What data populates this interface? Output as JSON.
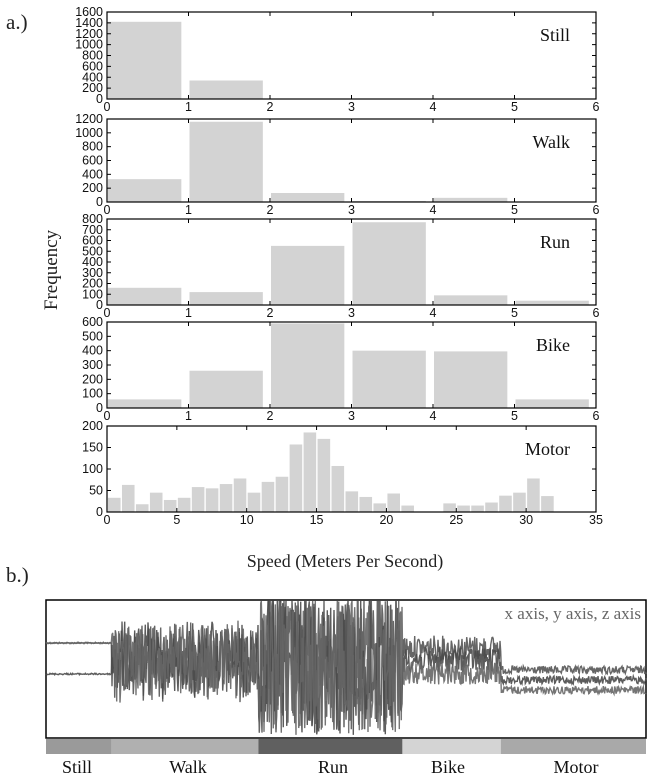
{
  "panel_labels": {
    "a": "a.)",
    "b": "b.)"
  },
  "shared_axis_labels": {
    "y": "Frequency",
    "x": "Speed (Meters Per Second)"
  },
  "chart_data": [
    {
      "type": "bar",
      "title": "Still",
      "xlim": [
        0,
        6
      ],
      "ylim": [
        0,
        1600
      ],
      "xticks": [
        0,
        1,
        2,
        3,
        4,
        5,
        6
      ],
      "yticks": [
        0,
        200,
        400,
        600,
        800,
        1000,
        1200,
        1400,
        1600
      ],
      "bin_edges": [
        0,
        1,
        2,
        3,
        4,
        5,
        6
      ],
      "values": [
        1420,
        340,
        0,
        0,
        0,
        0
      ]
    },
    {
      "type": "bar",
      "title": "Walk",
      "xlim": [
        0,
        6
      ],
      "ylim": [
        0,
        1200
      ],
      "xticks": [
        0,
        1,
        2,
        3,
        4,
        5,
        6
      ],
      "yticks": [
        0,
        200,
        400,
        600,
        800,
        1000,
        1200
      ],
      "bin_edges": [
        0,
        1,
        2,
        3,
        4,
        5,
        6
      ],
      "values": [
        330,
        1160,
        130,
        15,
        60,
        0
      ]
    },
    {
      "type": "bar",
      "title": "Run",
      "xlim": [
        0,
        6
      ],
      "ylim": [
        0,
        800
      ],
      "xticks": [
        0,
        1,
        2,
        3,
        4,
        5,
        6
      ],
      "yticks": [
        0,
        100,
        200,
        300,
        400,
        500,
        600,
        700,
        800
      ],
      "bin_edges": [
        0,
        1,
        2,
        3,
        4,
        5,
        6
      ],
      "values": [
        160,
        120,
        550,
        770,
        90,
        40
      ]
    },
    {
      "type": "bar",
      "title": "Bike",
      "xlim": [
        0,
        6
      ],
      "ylim": [
        0,
        600
      ],
      "xticks": [
        0,
        1,
        2,
        3,
        4,
        5,
        6
      ],
      "yticks": [
        0,
        100,
        200,
        300,
        400,
        500,
        600
      ],
      "bin_edges": [
        0,
        1,
        2,
        3,
        4,
        5,
        6
      ],
      "values": [
        60,
        260,
        590,
        400,
        395,
        60
      ]
    },
    {
      "type": "bar",
      "title": "Motor",
      "xlim": [
        0,
        35
      ],
      "ylim": [
        0,
        200
      ],
      "xticks": [
        0,
        5,
        10,
        15,
        20,
        25,
        30,
        35
      ],
      "yticks": [
        0,
        50,
        100,
        150,
        200
      ],
      "bin_start": 0,
      "bin_width": 1,
      "values": [
        33,
        63,
        18,
        45,
        28,
        33,
        58,
        55,
        65,
        78,
        45,
        70,
        82,
        157,
        185,
        170,
        107,
        48,
        35,
        20,
        43,
        15,
        0,
        0,
        20,
        15,
        15,
        22,
        38,
        45,
        78,
        37
      ]
    },
    {
      "type": "line",
      "legend": "x axis, y axis, z axis",
      "segments": [
        {
          "label": "Still",
          "color": "#9a9a9a",
          "start": 0.0,
          "end": 0.109
        },
        {
          "label": "Walk",
          "color": "#b0b0b0",
          "start": 0.109,
          "end": 0.354
        },
        {
          "label": "Run",
          "color": "#606060",
          "start": 0.354,
          "end": 0.594
        },
        {
          "label": "Bike",
          "color": "#d4d4d4",
          "start": 0.594,
          "end": 0.758
        },
        {
          "label": "Motor",
          "color": "#a9a9a9",
          "start": 0.758,
          "end": 1.0
        }
      ]
    }
  ]
}
